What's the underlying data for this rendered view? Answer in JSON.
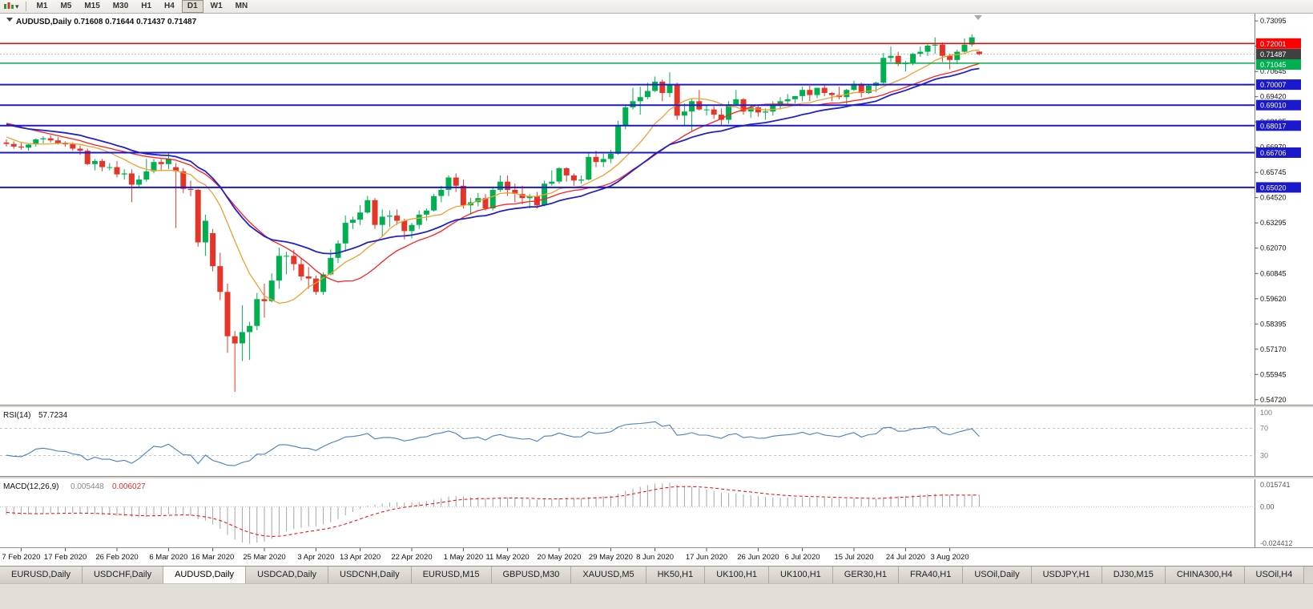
{
  "icons": {
    "dropdown_caret": "▾"
  },
  "toolbar": {
    "timeframes": [
      "M1",
      "M5",
      "M15",
      "M30",
      "H1",
      "H4",
      "D1",
      "W1",
      "MN"
    ],
    "active": "D1"
  },
  "chart_header": {
    "text": "AUDUSD,Daily 0.71608 0.71644 0.71437 0.71487"
  },
  "chart_data": {
    "type": "candlestick",
    "symbol": "AUDUSD",
    "timeframe": "Daily",
    "ohlc": {
      "open": "0.71608",
      "high": "0.71644",
      "low": "0.71437",
      "close": "0.71487"
    },
    "price_axis": {
      "min": 0.5448,
      "max": 0.7345,
      "tick_labels": [
        "0.73095",
        "0.71870",
        "0.70645",
        "0.69420",
        "0.68195",
        "0.66970",
        "0.65745",
        "0.64520",
        "0.63295",
        "0.62070",
        "0.60845",
        "0.59620",
        "0.58395",
        "0.57170",
        "0.55945",
        "0.54720"
      ]
    },
    "date_ticks": [
      {
        "label": "7 Feb 2020",
        "i": 2
      },
      {
        "label": "17 Feb 2020",
        "i": 8
      },
      {
        "label": "26 Feb 2020",
        "i": 15
      },
      {
        "label": "6 Mar 2020",
        "i": 22
      },
      {
        "label": "16 Mar 2020",
        "i": 28
      },
      {
        "label": "25 Mar 2020",
        "i": 35
      },
      {
        "label": "3 Apr 2020",
        "i": 42
      },
      {
        "label": "13 Apr 2020",
        "i": 48
      },
      {
        "label": "22 Apr 2020",
        "i": 55
      },
      {
        "label": "1 May 2020",
        "i": 62
      },
      {
        "label": "11 May 2020",
        "i": 68
      },
      {
        "label": "20 May 2020",
        "i": 75
      },
      {
        "label": "29 May 2020",
        "i": 82
      },
      {
        "label": "8 Jun 2020",
        "i": 88
      },
      {
        "label": "17 Jun 2020",
        "i": 95
      },
      {
        "label": "26 Jun 2020",
        "i": 102
      },
      {
        "label": "6 Jul 2020",
        "i": 108
      },
      {
        "label": "15 Jul 2020",
        "i": 115
      },
      {
        "label": "24 Jul 2020",
        "i": 122
      },
      {
        "label": "3 Aug 2020",
        "i": 128
      }
    ],
    "hlines": [
      {
        "price": 0.72001,
        "label": "0.72001",
        "color": "#ff0000",
        "width": 1.5
      },
      {
        "price": 0.71045,
        "label": "0.71045",
        "color": "#00b050",
        "width": 1.5
      },
      {
        "price": 0.70007,
        "label": "0.70007",
        "color": "#1a1acc",
        "width": 2
      },
      {
        "price": 0.6901,
        "label": "0.69010",
        "color": "#1a1acc",
        "width": 2
      },
      {
        "price": 0.68017,
        "label": "0.68017",
        "color": "#1a1acc",
        "width": 2
      },
      {
        "price": 0.66706,
        "label": "0.66706",
        "color": "#1a1acc",
        "width": 2
      },
      {
        "price": 0.6502,
        "label": "0.65020",
        "color": "#1a1acc",
        "width": 2
      }
    ],
    "current_price": {
      "value": 0.71487,
      "label": "0.71487"
    },
    "moving_averages": [
      {
        "name": "fast-ma",
        "type": "sma",
        "period": 10,
        "color": "#f0a030",
        "width": 1.3
      },
      {
        "name": "medium-ma",
        "type": "sma",
        "period": 20,
        "color": "#ff2020",
        "width": 1.3
      },
      {
        "name": "slow-ma",
        "type": "ema",
        "period": 26,
        "color": "#2222cc",
        "width": 1.8
      }
    ],
    "colors": {
      "bull": "#00b050",
      "bear": "#e53528",
      "current_label_bg": "#404040",
      "axis_text": "#111111",
      "bid_line": "#c9c9c9"
    },
    "indicators": {
      "rsi": {
        "name": "RSI(14)",
        "value": "57.7234",
        "period": 14,
        "color": "#4a7fc1",
        "levels": [
          70,
          30
        ],
        "scale_labels": [
          {
            "label": "100",
            "v": 100
          },
          {
            "label": "70",
            "v": 70
          },
          {
            "label": "30",
            "v": 30
          }
        ]
      },
      "macd": {
        "name": "MACD(12,26,9)",
        "main_value": "0.005448",
        "signal_value": "0.006027",
        "fast": 12,
        "slow": 26,
        "signal": 9,
        "hist_color": "#a6a6a6",
        "signal_color": "#ff0000",
        "scale_top": "0.015741",
        "scale_zero": "0.00",
        "scale_bottom": "-0.024412"
      }
    },
    "pre_history_closes": [
      0.6785,
      0.677,
      0.6775,
      0.677,
      0.6765,
      0.682,
      0.6845,
      0.685,
      0.6835,
      0.684,
      0.6825,
      0.681,
      0.687,
      0.6865,
      0.688,
      0.6885,
      0.6855,
      0.685,
      0.6885,
      0.69,
      0.69,
      0.6915,
      0.6935,
      0.6945,
      0.695,
      0.6985,
      0.702,
      0.701,
      0.6985,
      0.695,
      0.6935,
      0.6865,
      0.687,
      0.6855,
      0.69,
      0.69,
      0.69,
      0.6905,
      0.6895,
      0.6875,
      0.687,
      0.6845,
      0.684,
      0.6845,
      0.6825,
      0.676,
      0.6755,
      0.675,
      0.672,
      0.669,
      0.669,
      0.6725
    ],
    "candles": [
      [
        0.672,
        0.6735,
        0.67,
        0.6713
      ],
      [
        0.6713,
        0.6725,
        0.669,
        0.67
      ],
      [
        0.67,
        0.672,
        0.6685,
        0.6695
      ],
      [
        0.6695,
        0.6715,
        0.668,
        0.671
      ],
      [
        0.671,
        0.674,
        0.67,
        0.6735
      ],
      [
        0.6735,
        0.675,
        0.6715,
        0.674
      ],
      [
        0.674,
        0.6755,
        0.672,
        0.673
      ],
      [
        0.673,
        0.6745,
        0.671,
        0.6715
      ],
      [
        0.6715,
        0.6725,
        0.67,
        0.6712
      ],
      [
        0.6712,
        0.672,
        0.668,
        0.669
      ],
      [
        0.669,
        0.6705,
        0.666,
        0.668
      ],
      [
        0.668,
        0.669,
        0.661,
        0.6615
      ],
      [
        0.6615,
        0.664,
        0.6585,
        0.663
      ],
      [
        0.663,
        0.664,
        0.658,
        0.66
      ],
      [
        0.66,
        0.662,
        0.6585,
        0.66
      ],
      [
        0.66,
        0.663,
        0.655,
        0.6565
      ],
      [
        0.6565,
        0.659,
        0.654,
        0.657
      ],
      [
        0.657,
        0.659,
        0.643,
        0.6515
      ],
      [
        0.6515,
        0.656,
        0.6505,
        0.654
      ],
      [
        0.654,
        0.664,
        0.653,
        0.658
      ],
      [
        0.658,
        0.664,
        0.657,
        0.6625
      ],
      [
        0.6625,
        0.664,
        0.6585,
        0.6615
      ],
      [
        0.6615,
        0.667,
        0.659,
        0.664
      ],
      [
        0.66,
        0.662,
        0.6305,
        0.658
      ],
      [
        0.658,
        0.6595,
        0.6475,
        0.6495
      ],
      [
        0.6495,
        0.6535,
        0.646,
        0.649
      ],
      [
        0.649,
        0.6495,
        0.6215,
        0.6235
      ],
      [
        0.6235,
        0.637,
        0.617,
        0.634
      ],
      [
        0.628,
        0.63,
        0.6095,
        0.612
      ],
      [
        0.612,
        0.6185,
        0.5955,
        0.5995
      ],
      [
        0.5995,
        0.6035,
        0.57,
        0.578
      ],
      [
        0.578,
        0.5805,
        0.551,
        0.5745
      ],
      [
        0.5745,
        0.593,
        0.566,
        0.58
      ],
      [
        0.58,
        0.585,
        0.5665,
        0.583
      ],
      [
        0.583,
        0.599,
        0.581,
        0.596
      ],
      [
        0.596,
        0.6035,
        0.587,
        0.595
      ],
      [
        0.595,
        0.6085,
        0.5945,
        0.605
      ],
      [
        0.605,
        0.621,
        0.601,
        0.617
      ],
      [
        0.617,
        0.619,
        0.608,
        0.617
      ],
      [
        0.617,
        0.62,
        0.61,
        0.613
      ],
      [
        0.613,
        0.616,
        0.605,
        0.607
      ],
      [
        0.607,
        0.6115,
        0.601,
        0.606
      ],
      [
        0.606,
        0.6075,
        0.598,
        0.5995
      ],
      [
        0.5995,
        0.609,
        0.598,
        0.608
      ],
      [
        0.608,
        0.62,
        0.6075,
        0.616
      ],
      [
        0.616,
        0.6245,
        0.6135,
        0.623
      ],
      [
        0.623,
        0.6365,
        0.619,
        0.633
      ],
      [
        0.633,
        0.636,
        0.63,
        0.6345
      ],
      [
        0.6345,
        0.6415,
        0.632,
        0.638
      ],
      [
        0.638,
        0.646,
        0.6375,
        0.644
      ],
      [
        0.644,
        0.645,
        0.63,
        0.632
      ],
      [
        0.632,
        0.6395,
        0.6265,
        0.636
      ],
      [
        0.636,
        0.639,
        0.631,
        0.6365
      ],
      [
        0.6365,
        0.6395,
        0.632,
        0.634
      ],
      [
        0.634,
        0.635,
        0.625,
        0.629
      ],
      [
        0.629,
        0.633,
        0.6255,
        0.632
      ],
      [
        0.632,
        0.639,
        0.63,
        0.637
      ],
      [
        0.637,
        0.64,
        0.634,
        0.639
      ],
      [
        0.639,
        0.647,
        0.6385,
        0.646
      ],
      [
        0.646,
        0.651,
        0.643,
        0.649
      ],
      [
        0.649,
        0.656,
        0.646,
        0.655
      ],
      [
        0.655,
        0.657,
        0.648,
        0.651
      ],
      [
        0.651,
        0.654,
        0.64,
        0.6415
      ],
      [
        0.6415,
        0.645,
        0.637,
        0.643
      ],
      [
        0.643,
        0.6475,
        0.641,
        0.645
      ],
      [
        0.645,
        0.647,
        0.639,
        0.64
      ],
      [
        0.64,
        0.65,
        0.639,
        0.649
      ],
      [
        0.649,
        0.656,
        0.648,
        0.653
      ],
      [
        0.653,
        0.656,
        0.646,
        0.649
      ],
      [
        0.649,
        0.652,
        0.643,
        0.647
      ],
      [
        0.647,
        0.651,
        0.642,
        0.645
      ],
      [
        0.645,
        0.647,
        0.64,
        0.646
      ],
      [
        0.646,
        0.648,
        0.64,
        0.6415
      ],
      [
        0.6415,
        0.6535,
        0.641,
        0.652
      ],
      [
        0.652,
        0.6585,
        0.651,
        0.653
      ],
      [
        0.653,
        0.66,
        0.652,
        0.6595
      ],
      [
        0.6595,
        0.66,
        0.653,
        0.656
      ],
      [
        0.656,
        0.657,
        0.651,
        0.6535
      ],
      [
        0.6535,
        0.656,
        0.652,
        0.654
      ],
      [
        0.654,
        0.6675,
        0.6535,
        0.665
      ],
      [
        0.665,
        0.668,
        0.66,
        0.6625
      ],
      [
        0.6625,
        0.6665,
        0.66,
        0.664
      ],
      [
        0.664,
        0.6685,
        0.662,
        0.6665
      ],
      [
        0.6665,
        0.6825,
        0.666,
        0.68
      ],
      [
        0.68,
        0.69,
        0.6785,
        0.689
      ],
      [
        0.689,
        0.6985,
        0.688,
        0.692
      ],
      [
        0.692,
        0.699,
        0.6855,
        0.694
      ],
      [
        0.694,
        0.701,
        0.693,
        0.697
      ],
      [
        0.697,
        0.704,
        0.6965,
        0.7015
      ],
      [
        0.7015,
        0.7025,
        0.692,
        0.696
      ],
      [
        0.696,
        0.706,
        0.694,
        0.7
      ],
      [
        0.7,
        0.701,
        0.683,
        0.685
      ],
      [
        0.685,
        0.691,
        0.68,
        0.687
      ],
      [
        0.687,
        0.693,
        0.6775,
        0.692
      ],
      [
        0.692,
        0.6975,
        0.6875,
        0.688
      ],
      [
        0.688,
        0.6905,
        0.685,
        0.688
      ],
      [
        0.688,
        0.6895,
        0.6835,
        0.6855
      ],
      [
        0.6855,
        0.6885,
        0.6805,
        0.683
      ],
      [
        0.683,
        0.692,
        0.681,
        0.6905
      ],
      [
        0.6905,
        0.6975,
        0.69,
        0.693
      ],
      [
        0.693,
        0.6935,
        0.6855,
        0.687
      ],
      [
        0.687,
        0.69,
        0.684,
        0.689
      ],
      [
        0.689,
        0.69,
        0.6845,
        0.6865
      ],
      [
        0.6865,
        0.6885,
        0.683,
        0.687
      ],
      [
        0.687,
        0.692,
        0.685,
        0.6905
      ],
      [
        0.6905,
        0.694,
        0.688,
        0.692
      ],
      [
        0.692,
        0.6955,
        0.69,
        0.693
      ],
      [
        0.693,
        0.6945,
        0.691,
        0.6945
      ],
      [
        0.6945,
        0.699,
        0.692,
        0.6975
      ],
      [
        0.6975,
        0.6995,
        0.692,
        0.695
      ],
      [
        0.695,
        0.6985,
        0.6935,
        0.6985
      ],
      [
        0.6985,
        0.7,
        0.6945,
        0.696
      ],
      [
        0.696,
        0.6965,
        0.692,
        0.695
      ],
      [
        0.695,
        0.699,
        0.693,
        0.694
      ],
      [
        0.694,
        0.698,
        0.6905,
        0.6975
      ],
      [
        0.6975,
        0.702,
        0.697,
        0.7005
      ],
      [
        0.7005,
        0.701,
        0.694,
        0.696
      ],
      [
        0.696,
        0.7,
        0.6955,
        0.6995
      ],
      [
        0.6995,
        0.7015,
        0.6965,
        0.701
      ],
      [
        0.701,
        0.7155,
        0.7005,
        0.713
      ],
      [
        0.713,
        0.7185,
        0.711,
        0.714
      ],
      [
        0.714,
        0.716,
        0.709,
        0.71
      ],
      [
        0.71,
        0.7115,
        0.7065,
        0.7105
      ],
      [
        0.7105,
        0.7155,
        0.7095,
        0.715
      ],
      [
        0.715,
        0.7185,
        0.7135,
        0.716
      ],
      [
        0.716,
        0.72,
        0.714,
        0.719
      ],
      [
        0.719,
        0.723,
        0.715,
        0.7195
      ],
      [
        0.7195,
        0.7205,
        0.711,
        0.714
      ],
      [
        0.714,
        0.715,
        0.7075,
        0.712
      ],
      [
        0.712,
        0.717,
        0.71,
        0.716
      ],
      [
        0.716,
        0.7225,
        0.7155,
        0.7195
      ],
      [
        0.7195,
        0.7245,
        0.7185,
        0.723
      ],
      [
        0.71608,
        0.71644,
        0.71437,
        0.71487
      ]
    ]
  },
  "tabs": {
    "items": [
      {
        "label": "EURUSD,Daily"
      },
      {
        "label": "USDCHF,Daily"
      },
      {
        "label": "AUDUSD,Daily",
        "active": true
      },
      {
        "label": "USDCAD,Daily"
      },
      {
        "label": "USDCNH,Daily"
      },
      {
        "label": "EURUSD,M15"
      },
      {
        "label": "GBPUSD,M30"
      },
      {
        "label": "XAUUSD,M5"
      },
      {
        "label": "HK50,H1"
      },
      {
        "label": "UK100,H1"
      },
      {
        "label": "UK100,H1"
      },
      {
        "label": "GER30,H1"
      },
      {
        "label": "FRA40,H1"
      },
      {
        "label": "USOil,Daily"
      },
      {
        "label": "USDJPY,H1"
      },
      {
        "label": "DJ30,M15"
      },
      {
        "label": "CHINA300,H4"
      },
      {
        "label": "USOil,H4"
      }
    ]
  }
}
